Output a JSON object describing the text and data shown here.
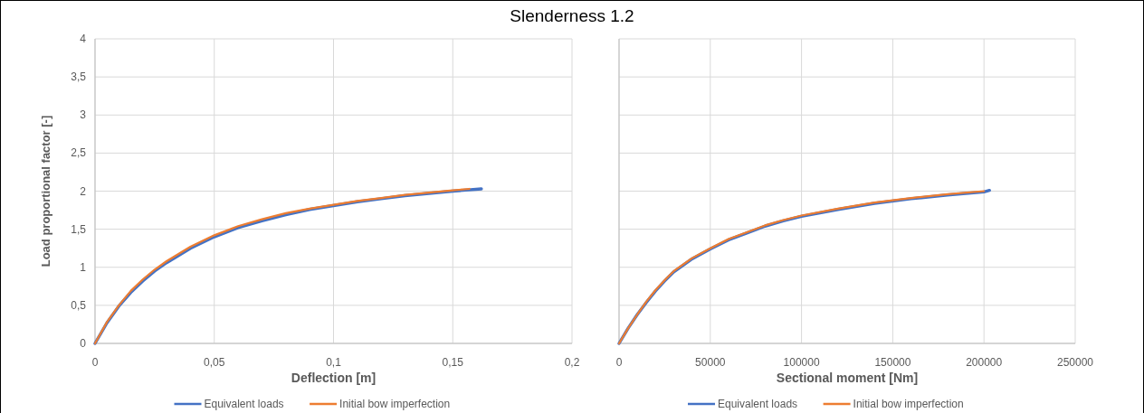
{
  "chart_data": [
    {
      "type": "line",
      "title": "Slenderness 1.2",
      "xlabel": "Deflection [m]",
      "ylabel": "Load proportional factor [-]",
      "xlim": [
        0,
        0.2
      ],
      "xticks": [
        0,
        {
          "value": 0.05,
          "label": "0,05"
        },
        {
          "value": 0.1,
          "label": "0,1"
        },
        {
          "value": 0.15,
          "label": "0,15"
        },
        {
          "value": 0.2,
          "label": "0,2"
        }
      ],
      "ylim": [
        0,
        4
      ],
      "yticks": [
        0,
        {
          "value": 0.5,
          "label": "0,5"
        },
        1,
        {
          "value": 1.5,
          "label": "1,5"
        },
        2,
        {
          "value": 2.5,
          "label": "2,5"
        },
        3,
        {
          "value": 3.5,
          "label": "3,5"
        },
        4
      ],
      "grid": true,
      "legend": "bottom",
      "marker": "none",
      "line_style": "solid",
      "series": [
        {
          "name": "Equivalent loads",
          "color": "#4472c4",
          "x": [
            0,
            0.005,
            0.01,
            0.015,
            0.02,
            0.025,
            0.03,
            0.04,
            0.05,
            0.06,
            0.07,
            0.08,
            0.09,
            0.1,
            0.11,
            0.12,
            0.13,
            0.14,
            0.15,
            0.162
          ],
          "values": [
            0,
            0.27,
            0.49,
            0.67,
            0.82,
            0.95,
            1.06,
            1.25,
            1.4,
            1.52,
            1.61,
            1.69,
            1.76,
            1.81,
            1.86,
            1.9,
            1.94,
            1.97,
            2.0,
            2.03
          ]
        },
        {
          "name": "Initial bow imperfection",
          "color": "#ed7d31",
          "x": [
            0,
            0.005,
            0.01,
            0.015,
            0.02,
            0.025,
            0.03,
            0.04,
            0.05,
            0.06,
            0.07,
            0.08,
            0.09,
            0.1,
            0.11,
            0.12,
            0.13,
            0.14,
            0.15,
            0.157
          ],
          "values": [
            0,
            0.28,
            0.5,
            0.69,
            0.84,
            0.97,
            1.08,
            1.27,
            1.42,
            1.54,
            1.63,
            1.71,
            1.77,
            1.82,
            1.87,
            1.91,
            1.95,
            1.98,
            2.01,
            2.03
          ]
        }
      ]
    },
    {
      "type": "line",
      "xlabel": "Sectional moment [Nm]",
      "xlim": [
        0,
        250000
      ],
      "xticks": [
        0,
        50000,
        100000,
        150000,
        200000,
        250000
      ],
      "ylim": [
        0,
        4
      ],
      "yticks": [
        0,
        0.5,
        1,
        1.5,
        2,
        2.5,
        3,
        3.5,
        4
      ],
      "tick_labels": "x",
      "grid": true,
      "legend": "bottom",
      "marker": "none",
      "line_style": "solid",
      "series": [
        {
          "name": "Equivalent loads",
          "color": "#4472c4",
          "x": [
            0,
            5000,
            10000,
            15000,
            20000,
            25000,
            30000,
            40000,
            50000,
            60000,
            70000,
            80000,
            90000,
            100000,
            120000,
            140000,
            160000,
            180000,
            200000,
            203000
          ],
          "values": [
            0,
            0.2,
            0.38,
            0.54,
            0.69,
            0.82,
            0.94,
            1.11,
            1.24,
            1.36,
            1.45,
            1.54,
            1.61,
            1.67,
            1.76,
            1.84,
            1.9,
            1.95,
            1.99,
            2.01
          ]
        },
        {
          "name": "Initial bow imperfection",
          "color": "#ed7d31",
          "x": [
            0,
            5000,
            10000,
            15000,
            20000,
            25000,
            30000,
            40000,
            50000,
            60000,
            70000,
            80000,
            90000,
            100000,
            120000,
            140000,
            160000,
            180000,
            200000
          ],
          "values": [
            0,
            0.2,
            0.38,
            0.55,
            0.7,
            0.83,
            0.95,
            1.12,
            1.25,
            1.37,
            1.46,
            1.55,
            1.62,
            1.68,
            1.77,
            1.85,
            1.91,
            1.96,
            2.0
          ]
        }
      ]
    }
  ]
}
